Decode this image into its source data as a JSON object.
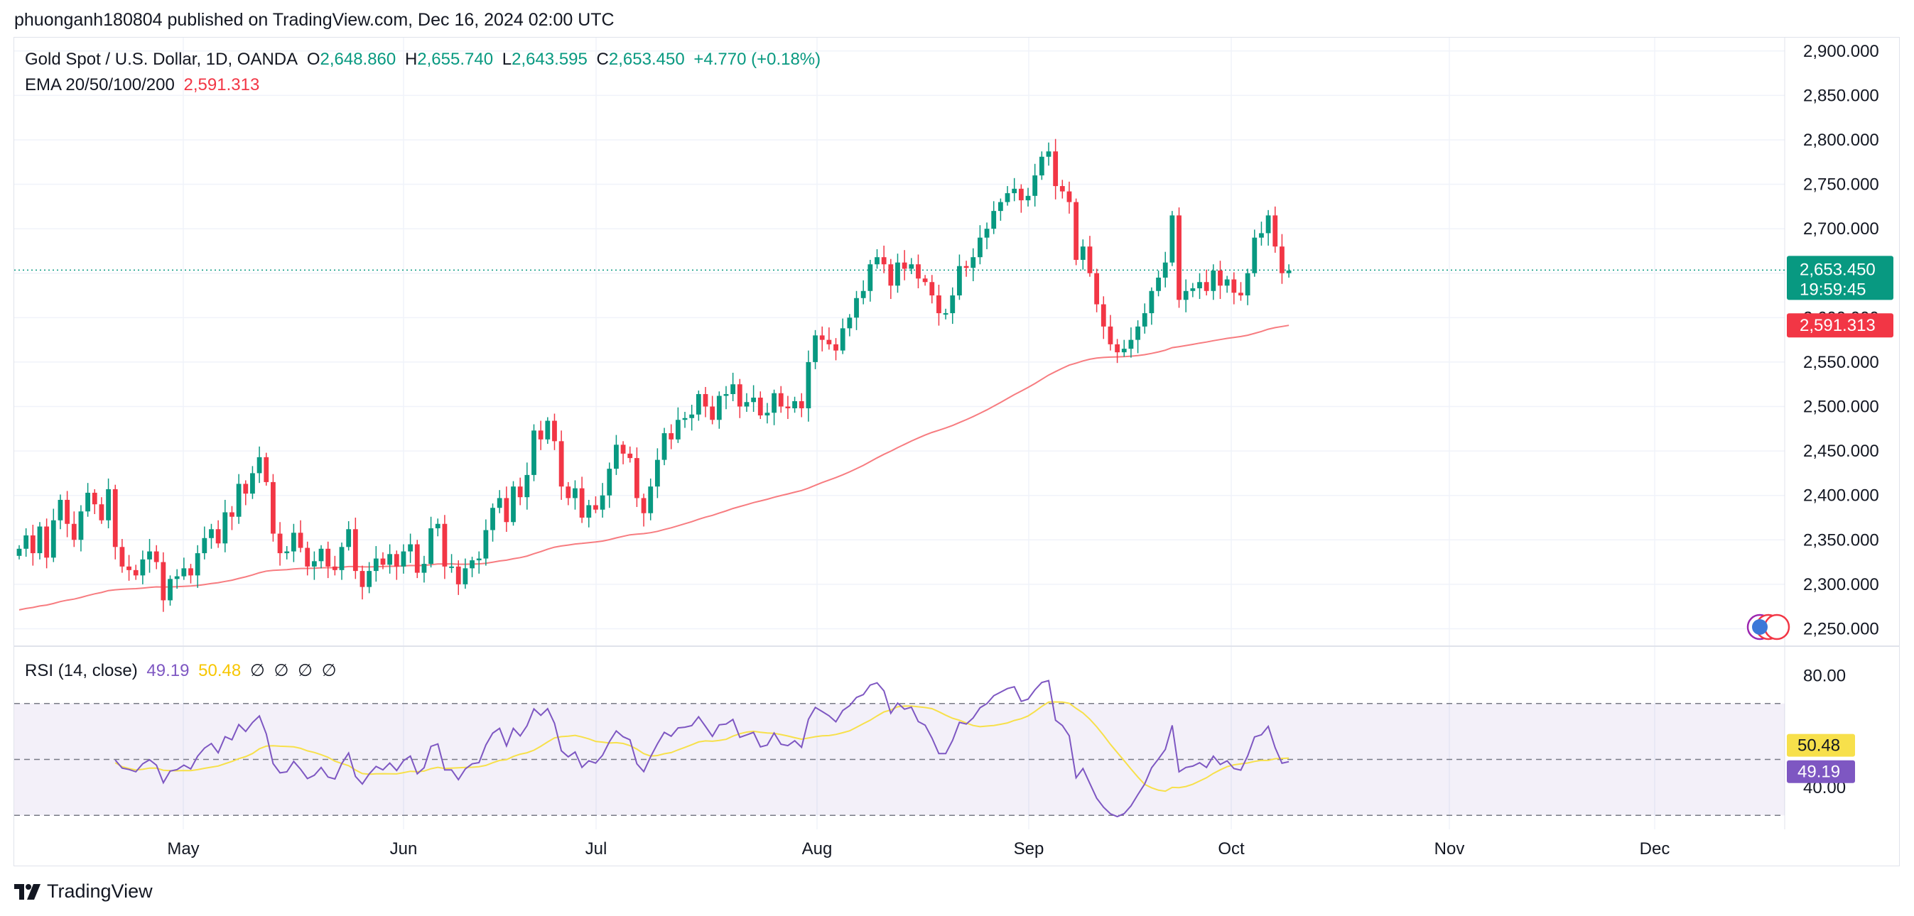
{
  "publisher": "phuonganh180804 published on TradingView.com, Dec 16, 2024 02:00 UTC",
  "legend": {
    "symbol": "Gold Spot / U.S. Dollar, 1D, OANDA",
    "open_label": "O",
    "open": "2,648.860",
    "high_label": "H",
    "high": "2,655.740",
    "low_label": "L",
    "low": "2,643.595",
    "close_label": "C",
    "close": "2,653.450",
    "change": "+4.770 (+0.18%)",
    "ema_label": "EMA 20/50/100/200",
    "ema_value": "2,591.313"
  },
  "rsi_legend": {
    "label": "RSI (14, close)",
    "rsi": "49.19",
    "ma": "50.48",
    "empty": [
      "∅",
      "∅",
      "∅",
      "∅"
    ]
  },
  "price_badge": {
    "price": "2,653.450",
    "countdown": "19:59:45"
  },
  "ema_badge": "2,591.313",
  "rsi_badges": {
    "ma": "50.48",
    "rsi": "49.19"
  },
  "footer": "TradingView",
  "colors": {
    "up": "#089981",
    "down": "#f23645",
    "ema": "#f77c80",
    "rsi": "#7e57c2",
    "rsi_ma": "#f7e04b"
  },
  "chart_data": [
    {
      "type": "candlestick",
      "title": "Gold Spot / U.S. Dollar, 1D, OANDA",
      "x_ticks": [
        "May",
        "Jun",
        "Jul",
        "Aug",
        "Sep",
        "Oct",
        "Nov",
        "Dec"
      ],
      "y_ticks": [
        "2,900.000",
        "2,850.000",
        "2,800.000",
        "2,750.000",
        "2,700.000",
        "2,650.000",
        "2,600.000",
        "2,550.000",
        "2,500.000",
        "2,450.000",
        "2,400.000",
        "2,350.000",
        "2,300.000",
        "2,250.000"
      ],
      "y_tick_values": [
        2900,
        2850,
        2800,
        2750,
        2700,
        2650,
        2600,
        2550,
        2500,
        2450,
        2400,
        2350,
        2300,
        2250
      ],
      "ylim": [
        2232,
        2915
      ],
      "last_price": 2653.45,
      "ema_200": 2591.313,
      "closes": [
        2340,
        2355,
        2335,
        2365,
        2330,
        2372,
        2395,
        2368,
        2350,
        2382,
        2403,
        2390,
        2372,
        2407,
        2342,
        2320,
        2316,
        2310,
        2328,
        2337,
        2325,
        2282,
        2306,
        2309,
        2318,
        2310,
        2335,
        2352,
        2362,
        2346,
        2381,
        2376,
        2413,
        2402,
        2425,
        2443,
        2415,
        2357,
        2335,
        2337,
        2358,
        2341,
        2320,
        2326,
        2340,
        2320,
        2316,
        2342,
        2362,
        2315,
        2297,
        2315,
        2329,
        2322,
        2334,
        2320,
        2337,
        2345,
        2313,
        2323,
        2363,
        2368,
        2320,
        2320,
        2300,
        2318,
        2327,
        2329,
        2361,
        2386,
        2397,
        2370,
        2410,
        2398,
        2423,
        2473,
        2463,
        2484,
        2461,
        2410,
        2397,
        2408,
        2375,
        2389,
        2384,
        2400,
        2430,
        2457,
        2447,
        2442,
        2397,
        2380,
        2410,
        2440,
        2470,
        2463,
        2485,
        2487,
        2491,
        2514,
        2500,
        2485,
        2512,
        2514,
        2525,
        2500,
        2505,
        2510,
        2490,
        2493,
        2515,
        2500,
        2498,
        2506,
        2498,
        2550,
        2580,
        2575,
        2570,
        2563,
        2588,
        2600,
        2622,
        2630,
        2660,
        2668,
        2660,
        2636,
        2662,
        2655,
        2660,
        2644,
        2640,
        2625,
        2605,
        2605,
        2625,
        2658,
        2656,
        2668,
        2690,
        2700,
        2720,
        2730,
        2740,
        2745,
        2732,
        2737,
        2760,
        2781,
        2787,
        2748,
        2742,
        2730,
        2665,
        2680,
        2650,
        2615,
        2590,
        2570,
        2561,
        2565,
        2575,
        2590,
        2605,
        2630,
        2645,
        2662,
        2715,
        2620,
        2630,
        2633,
        2640,
        2630,
        2653,
        2636,
        2643,
        2628,
        2625,
        2650,
        2690,
        2695,
        2715,
        2680,
        2650,
        2653
      ]
    },
    {
      "type": "line",
      "title": "RSI (14, close)",
      "y_ticks": [
        "80.00",
        "40.00"
      ],
      "y_tick_values": [
        80,
        40
      ],
      "bands": [
        70,
        50,
        30
      ],
      "ylim": [
        25,
        90
      ],
      "series": [
        {
          "name": "RSI",
          "value": 49.19
        },
        {
          "name": "RSI-based MA",
          "value": 50.48
        }
      ]
    }
  ]
}
